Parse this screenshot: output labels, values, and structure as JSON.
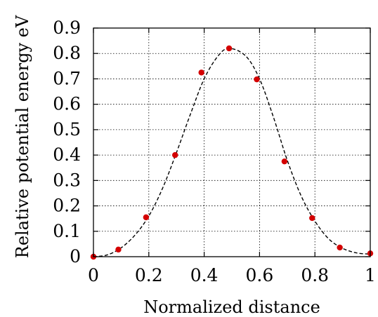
{
  "chart_data": {
    "type": "scatter",
    "xlabel": "Normalized distance",
    "ylabel": "Relative potential energy eV",
    "xlim": [
      0,
      1
    ],
    "ylim": [
      0,
      0.9
    ],
    "x_ticks": [
      "0",
      "0.2",
      "0.4",
      "0.6",
      "0.8",
      "1"
    ],
    "y_ticks": [
      "0",
      "0.1",
      "0.2",
      "0.3",
      "0.4",
      "0.5",
      "0.6",
      "0.7",
      "0.8",
      "0.9"
    ],
    "grid": true,
    "series": [
      {
        "style": "points",
        "color": "#d40000",
        "x": [
          0.0,
          0.09,
          0.19,
          0.295,
          0.39,
          0.49,
          0.59,
          0.69,
          0.79,
          0.89,
          1.0
        ],
        "y": [
          0.0,
          0.028,
          0.155,
          0.4,
          0.725,
          0.82,
          0.698,
          0.375,
          0.152,
          0.036,
          0.013
        ]
      },
      {
        "style": "dashed-line",
        "color": "#000000",
        "x": [
          0.0,
          0.05,
          0.1,
          0.15,
          0.2,
          0.25,
          0.3,
          0.35,
          0.4,
          0.45,
          0.49,
          0.55,
          0.6,
          0.65,
          0.7,
          0.75,
          0.8,
          0.85,
          0.9,
          0.95,
          1.0
        ],
        "y": [
          0.0,
          0.007,
          0.035,
          0.085,
          0.16,
          0.27,
          0.41,
          0.56,
          0.7,
          0.79,
          0.82,
          0.79,
          0.7,
          0.55,
          0.38,
          0.24,
          0.14,
          0.07,
          0.033,
          0.015,
          0.01
        ]
      }
    ]
  }
}
